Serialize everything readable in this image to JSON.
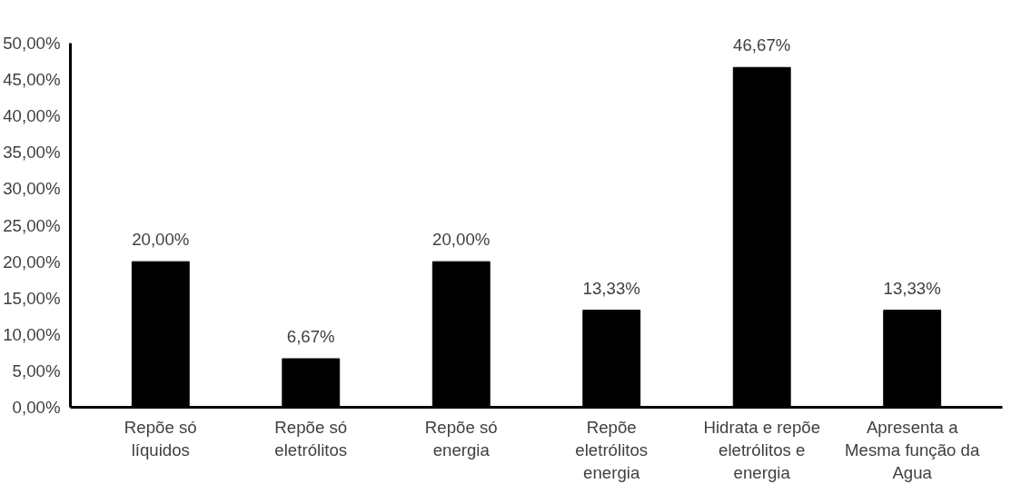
{
  "chart_data": {
    "type": "bar",
    "categories": [
      "Repõe só líquidos",
      "Repõe só eletrólitos",
      "Repõe só energia",
      "Repõe eletrólitos energia",
      "Hidrata e repõe eletrólitos e energia",
      "Apresenta a Mesma função da Agua"
    ],
    "values": [
      20.0,
      6.67,
      20.0,
      13.33,
      46.67,
      13.33
    ],
    "value_labels": [
      "20,00%",
      "6,67%",
      "20,00%",
      "13,33%",
      "46,67%",
      "13,33%"
    ],
    "color": "#000000",
    "ylim": [
      0,
      50
    ],
    "yticks": [
      {
        "value": 0,
        "label": "0,00%"
      },
      {
        "value": 5,
        "label": "5,00%"
      },
      {
        "value": 10,
        "label": "10,00%"
      },
      {
        "value": 15,
        "label": "15,00%"
      },
      {
        "value": 20,
        "label": "20,00%"
      },
      {
        "value": 25,
        "label": "25,00%"
      },
      {
        "value": 30,
        "label": "30,00%"
      },
      {
        "value": 35,
        "label": "35,00%"
      },
      {
        "value": 40,
        "label": "40,00%"
      },
      {
        "value": 45,
        "label": "45,00%"
      },
      {
        "value": 50,
        "label": "50,00%"
      }
    ],
    "grid": false
  }
}
